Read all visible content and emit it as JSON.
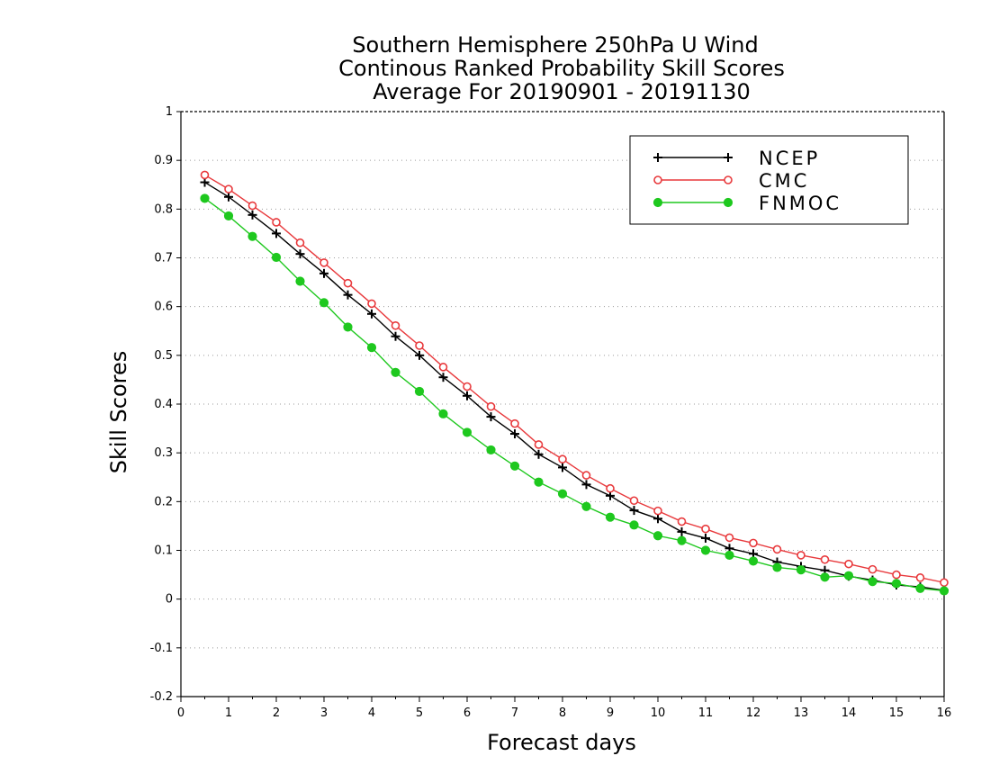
{
  "chart_data": {
    "type": "line",
    "title": [
      "Southern Hemisphere 250hPa U Wind",
      "Continous Ranked Probability Skill Scores",
      "Average For 20190901 - 20191130"
    ],
    "xlabel": "Forecast days",
    "ylabel": "Skill Scores",
    "xlim": [
      0,
      16
    ],
    "ylim": [
      -0.2,
      1
    ],
    "xticks": [
      0,
      1,
      2,
      3,
      4,
      5,
      6,
      7,
      8,
      9,
      10,
      11,
      12,
      13,
      14,
      15,
      16
    ],
    "yticks": [
      -0.2,
      -0.1,
      0,
      0.1,
      0.2,
      0.3,
      0.4,
      0.5,
      0.6,
      0.7,
      0.8,
      0.9,
      1
    ],
    "ytick_labels": [
      "-0.2",
      "-0.1",
      "0",
      "0.1",
      "0.2",
      "0.3",
      "0.4",
      "0.5",
      "0.6",
      "0.7",
      "0.8",
      "0.9",
      "1"
    ],
    "grid": "horizontal dotted",
    "legend_position": "top-right",
    "x": [
      0.5,
      1,
      1.5,
      2,
      2.5,
      3,
      3.5,
      4,
      4.5,
      5,
      5.5,
      6,
      6.5,
      7,
      7.5,
      8,
      8.5,
      9,
      9.5,
      10,
      10.5,
      11,
      11.5,
      12,
      12.5,
      13,
      13.5,
      14,
      14.5,
      15,
      15.5,
      16
    ],
    "series": [
      {
        "name": "NCEP",
        "color": "#000000",
        "marker": "plus",
        "values": [
          0.855,
          0.825,
          0.788,
          0.75,
          0.708,
          0.668,
          0.624,
          0.585,
          0.539,
          0.5,
          0.455,
          0.417,
          0.374,
          0.339,
          0.297,
          0.27,
          0.235,
          0.212,
          0.182,
          0.165,
          0.138,
          0.125,
          0.104,
          0.093,
          0.076,
          0.067,
          0.059,
          0.047,
          0.039,
          0.029,
          0.025,
          0.018
        ]
      },
      {
        "name": "CMC",
        "color": "#e8393c",
        "marker": "open-circle",
        "values": [
          0.87,
          0.841,
          0.807,
          0.773,
          0.731,
          0.69,
          0.648,
          0.606,
          0.561,
          0.52,
          0.476,
          0.436,
          0.395,
          0.36,
          0.317,
          0.287,
          0.254,
          0.227,
          0.202,
          0.181,
          0.159,
          0.144,
          0.126,
          0.115,
          0.102,
          0.09,
          0.081,
          0.072,
          0.061,
          0.05,
          0.044,
          0.034
        ]
      },
      {
        "name": "FNMOC",
        "color": "#1ec81e",
        "marker": "filled-circle",
        "values": [
          0.822,
          0.786,
          0.744,
          0.701,
          0.652,
          0.608,
          0.558,
          0.516,
          0.465,
          0.426,
          0.38,
          0.342,
          0.306,
          0.273,
          0.24,
          0.216,
          0.19,
          0.168,
          0.152,
          0.13,
          0.12,
          0.1,
          0.09,
          0.078,
          0.065,
          0.06,
          0.045,
          0.048,
          0.036,
          0.032,
          0.022,
          0.017
        ]
      }
    ]
  }
}
